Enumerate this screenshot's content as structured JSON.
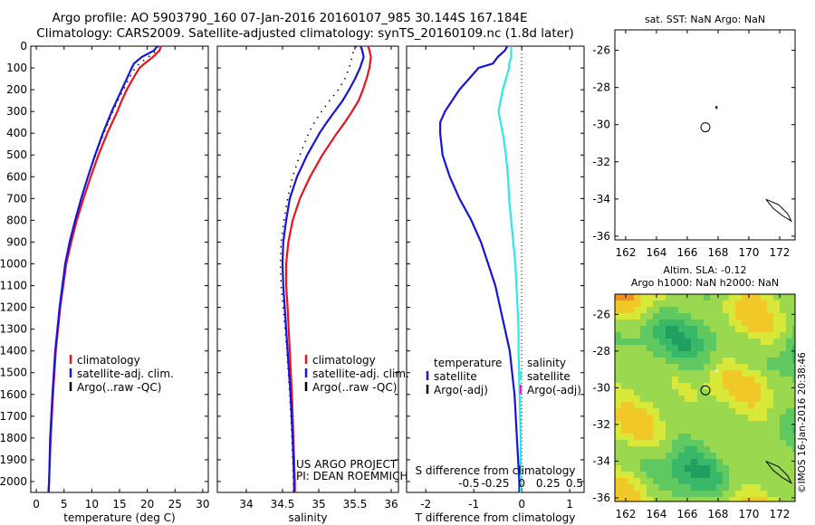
{
  "header": {
    "title_line1": "Argo profile: AO 5903790_160 07-Jan-2016 20160107_985 30.144S 167.184E",
    "title_line2": "Climatology: CARS2009. Satellite-adjusted climatology: synTS_20160109.nc (1.8d later)"
  },
  "map_top": {
    "title": "sat. SST: NaN Argo: NaN"
  },
  "map_bottom": {
    "title_line1": "Altim. SLA: -0.12",
    "title_line2": "Argo h1000: NaN h2000: NaN"
  },
  "credit": "©IMOS 16-Jan-2016 20:38:46",
  "colors": {
    "climatology": "#e8141e",
    "satellite": "#1414dc",
    "argo": "#000000",
    "cyan": "#2ee8e8",
    "magenta": "#e020e0"
  },
  "chart_data": [
    {
      "type": "line",
      "panel": "temperature",
      "xlabel": "temperature (deg C)",
      "xlim": [
        -1,
        31
      ],
      "ylim": [
        2050,
        0
      ],
      "y_reversed": true,
      "xticks": [
        0,
        5,
        10,
        15,
        20,
        25,
        30
      ],
      "yticks": [
        0,
        100,
        200,
        300,
        400,
        500,
        600,
        700,
        800,
        900,
        1000,
        1100,
        1200,
        1300,
        1400,
        1500,
        1600,
        1700,
        1800,
        1900,
        2000
      ],
      "legend": [
        "climatology",
        "satellite-adj. clim.",
        "Argo(..raw -QC)"
      ],
      "depth": [
        0,
        20,
        50,
        80,
        100,
        150,
        200,
        250,
        300,
        350,
        400,
        450,
        500,
        600,
        700,
        800,
        900,
        1000,
        1200,
        1400,
        1600,
        1800,
        2000,
        2050
      ],
      "series": [
        {
          "name": "climatology",
          "values": [
            22.5,
            22.2,
            21.0,
            19.5,
            18.6,
            17.4,
            16.3,
            15.4,
            14.6,
            13.7,
            12.8,
            12.0,
            11.2,
            9.8,
            8.5,
            7.3,
            6.3,
            5.4,
            4.3,
            3.5,
            3.0,
            2.6,
            2.3,
            2.2
          ]
        },
        {
          "name": "satellite-adj. clim.",
          "values": [
            21.8,
            21.2,
            19.0,
            17.6,
            17.2,
            16.3,
            15.4,
            14.5,
            13.6,
            12.8,
            12.0,
            11.3,
            10.6,
            9.3,
            8.1,
            7.0,
            6.0,
            5.2,
            4.2,
            3.4,
            2.9,
            2.5,
            2.3,
            2.2
          ]
        },
        {
          "name": "Argo(..raw -QC)",
          "values": [
            22.0,
            21.7,
            20.2,
            18.6,
            17.8,
            16.7,
            15.7,
            14.7,
            13.8,
            13.0,
            12.2,
            11.4,
            10.7,
            9.3,
            8.1,
            7.0,
            6.0,
            5.2,
            4.2,
            3.4,
            2.9,
            2.5,
            2.3,
            2.2
          ]
        }
      ]
    },
    {
      "type": "line",
      "panel": "salinity",
      "xlabel": "salinity",
      "xlim": [
        33.6,
        36.1
      ],
      "ylim": [
        2050,
        0
      ],
      "y_reversed": true,
      "xticks": [
        34,
        34.5,
        35,
        35.5,
        36
      ],
      "xticklabels": [
        "34",
        "34.5",
        "35",
        "35.5",
        "36"
      ],
      "legend": [
        "climatology",
        "satellite-adj. clim.",
        "Argo(..raw -QC)"
      ],
      "annotation": [
        "US ARGO PROJECT",
        "PI: DEAN ROEMMICH"
      ],
      "depth": [
        0,
        20,
        50,
        100,
        150,
        200,
        250,
        300,
        350,
        400,
        500,
        600,
        700,
        800,
        900,
        1000,
        1100,
        1200,
        1400,
        1600,
        1800,
        2000,
        2050
      ],
      "series": [
        {
          "name": "climatology",
          "values": [
            35.68,
            35.7,
            35.72,
            35.7,
            35.66,
            35.61,
            35.55,
            35.46,
            35.36,
            35.25,
            35.05,
            34.88,
            34.74,
            34.64,
            34.58,
            34.55,
            34.55,
            34.57,
            34.6,
            34.63,
            34.65,
            34.67,
            34.67
          ]
        },
        {
          "name": "satellite-adj. clim.",
          "values": [
            35.58,
            35.6,
            35.62,
            35.57,
            35.5,
            35.42,
            35.33,
            35.22,
            35.11,
            35.01,
            34.84,
            34.7,
            34.6,
            34.55,
            34.51,
            34.5,
            34.51,
            34.53,
            34.57,
            34.61,
            34.64,
            34.66,
            34.66
          ]
        },
        {
          "name": "Argo(..raw -QC)",
          "values": [
            35.52,
            35.48,
            35.46,
            35.42,
            35.36,
            35.27,
            35.15,
            35.04,
            34.94,
            34.86,
            34.74,
            34.64,
            34.57,
            34.52,
            34.48,
            34.47,
            34.48,
            34.51,
            34.56,
            34.6,
            34.63,
            34.65,
            34.65
          ]
        }
      ]
    },
    {
      "type": "line",
      "panel": "difference",
      "xlabel": "T difference from climatology",
      "xlabel_top": "S difference from climatology",
      "xlim": [
        -2.4,
        1.3
      ],
      "ylim": [
        2050,
        0
      ],
      "y_reversed": true,
      "xticks": [
        -2,
        -1,
        0,
        1
      ],
      "xticklabels": [
        "-2",
        "-1",
        "0",
        "1"
      ],
      "sticks": [
        -0.5,
        -0.25,
        0,
        0.25,
        0.5
      ],
      "sticklabels": [
        "-0.5",
        "-0.25",
        "0",
        "0.25",
        "0.5"
      ],
      "legend_t": [
        "temperature",
        "satellite",
        "Argo(-adj)"
      ],
      "legend_s": [
        "salinity",
        "satellite",
        "Argo(-adj)"
      ],
      "depth": [
        0,
        20,
        50,
        80,
        100,
        150,
        200,
        250,
        300,
        350,
        400,
        500,
        600,
        700,
        800,
        900,
        1000,
        1100,
        1200,
        1300,
        1400,
        1600,
        1800,
        2000,
        2050
      ],
      "series": [
        {
          "name": "temperature satellite",
          "values": [
            -0.3,
            -0.35,
            -0.5,
            -0.6,
            -0.9,
            -1.1,
            -1.3,
            -1.45,
            -1.6,
            -1.7,
            -1.7,
            -1.65,
            -1.5,
            -1.3,
            -1.05,
            -0.85,
            -0.7,
            -0.55,
            -0.45,
            -0.35,
            -0.25,
            -0.15,
            -0.1,
            -0.05,
            -0.05
          ]
        },
        {
          "name": "salinity satellite",
          "values": [
            -0.1,
            -0.1,
            -0.1,
            -0.12,
            -0.12,
            -0.15,
            -0.18,
            -0.2,
            -0.22,
            -0.2,
            -0.18,
            -0.15,
            -0.13,
            -0.12,
            -0.1,
            -0.08,
            -0.06,
            -0.05,
            -0.04,
            -0.03,
            -0.03,
            -0.02,
            -0.01,
            -0.01,
            -0.01
          ]
        }
      ]
    },
    {
      "type": "scatter",
      "panel": "map_sst",
      "title": "sat. SST: NaN Argo: NaN",
      "xlim": [
        161.3,
        173
      ],
      "ylim": [
        -36.2,
        -24.9
      ],
      "xticks": [
        162,
        164,
        166,
        168,
        170,
        172
      ],
      "yticks": [
        -26,
        -28,
        -30,
        -32,
        -34,
        -36
      ],
      "points": [
        {
          "name": "float",
          "x": 167.18,
          "y": -30.14
        }
      ]
    },
    {
      "type": "heatmap",
      "panel": "map_sla",
      "title": "Altim. SLA: -0.12",
      "xlim": [
        161.3,
        173
      ],
      "ylim": [
        -36.2,
        -24.9
      ],
      "xticks": [
        162,
        164,
        166,
        168,
        170,
        172
      ],
      "yticks": [
        -26,
        -28,
        -30,
        -32,
        -34,
        -36
      ],
      "points": [
        {
          "name": "float",
          "x": 167.18,
          "y": -30.14
        }
      ]
    }
  ]
}
